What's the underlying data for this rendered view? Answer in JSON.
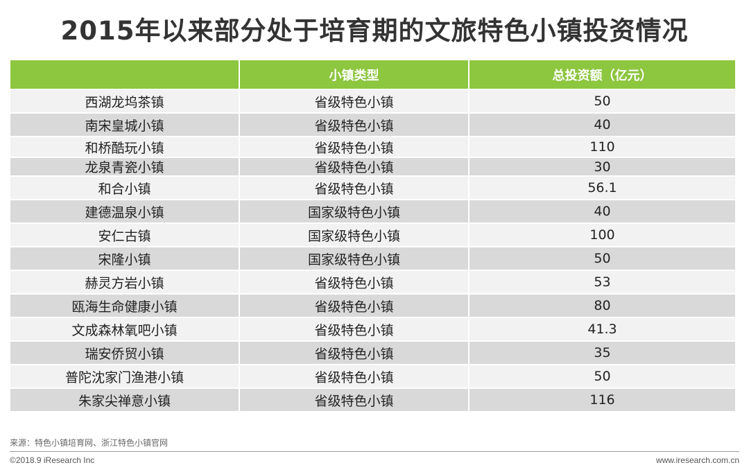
{
  "title": "2015年以来部分处于培育期的文旅特色小镇投资情况",
  "table": {
    "headers": [
      "",
      "小镇类型",
      "总投资额（亿元）"
    ],
    "rows": [
      [
        "西湖龙坞茶镇",
        "省级特色小镇",
        "50"
      ],
      [
        "南宋皇城小镇",
        "省级特色小镇",
        "40"
      ],
      [
        "和桥酷玩小镇",
        "省级特色小镇",
        "110"
      ],
      [
        "龙泉青瓷小镇",
        "省级特色小镇",
        "30"
      ],
      [
        "和合小镇",
        "省级特色小镇",
        "56.1"
      ],
      [
        "建德温泉小镇",
        "国家级特色小镇",
        "40"
      ],
      [
        "安仁古镇",
        "国家级特色小镇",
        "100"
      ],
      [
        "宋隆小镇",
        "国家级特色小镇",
        "50"
      ],
      [
        "赫灵方岩小镇",
        "省级特色小镇",
        "53"
      ],
      [
        "瓯海生命健康小镇",
        "省级特色小镇",
        "80"
      ],
      [
        "文成森林氧吧小镇",
        "省级特色小镇",
        "41.3"
      ],
      [
        "瑞安侨贸小镇",
        "省级特色小镇",
        "35"
      ],
      [
        "普陀沈家门渔港小镇",
        "省级特色小镇",
        "50"
      ],
      [
        "朱家尖禅意小镇",
        "省级特色小镇",
        "116"
      ]
    ]
  },
  "source": "来源：特色小镇培育网、浙江特色小镇官网",
  "copyright": "©2018.9 iResearch Inc",
  "website": "www.iresearch.com.cn",
  "colors": {
    "header_green": "#8dc63f",
    "row_light": "#f2f2f2",
    "row_dark": "#d9d9d9"
  }
}
